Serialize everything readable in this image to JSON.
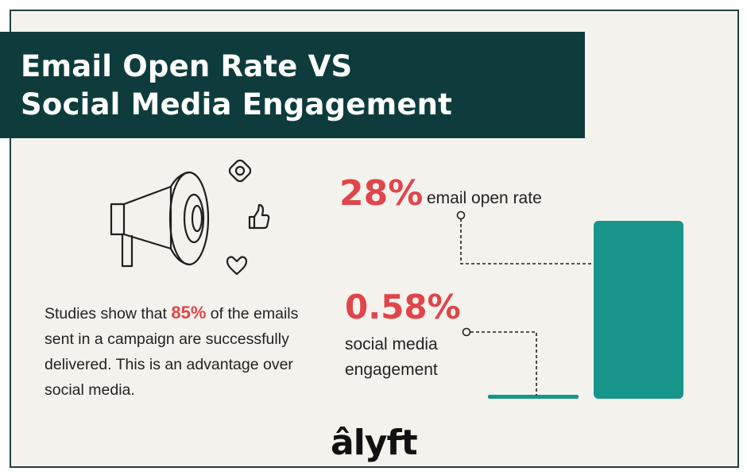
{
  "title": {
    "line1": "Email Open Rate VS",
    "line2": "Social Media Engagement"
  },
  "description": {
    "prefix": "Studies show that ",
    "highlight": "85%",
    "suffix": " of the emails sent in a campaign are successfully delivered. This is an advantage over social media."
  },
  "stats": {
    "email_value": "28%",
    "email_label": "email open rate",
    "social_value": "0.58%",
    "social_label": "social media engagement"
  },
  "logo": "âlyft",
  "icons": [
    "megaphone-icon",
    "instagram-icon",
    "thumbs-up-icon",
    "heart-icon"
  ],
  "colors": {
    "title_band": "#0e3c3c",
    "bar": "#17958a",
    "highlight": "#e0454a",
    "background": "#f4f2ed"
  },
  "chart_data": {
    "type": "bar",
    "categories": [
      "social media engagement",
      "email open rate"
    ],
    "values": [
      0.58,
      28
    ],
    "title": "Email Open Rate VS Social Media Engagement",
    "xlabel": "",
    "ylabel": "",
    "ylim": [
      0,
      28
    ],
    "grid": false
  }
}
